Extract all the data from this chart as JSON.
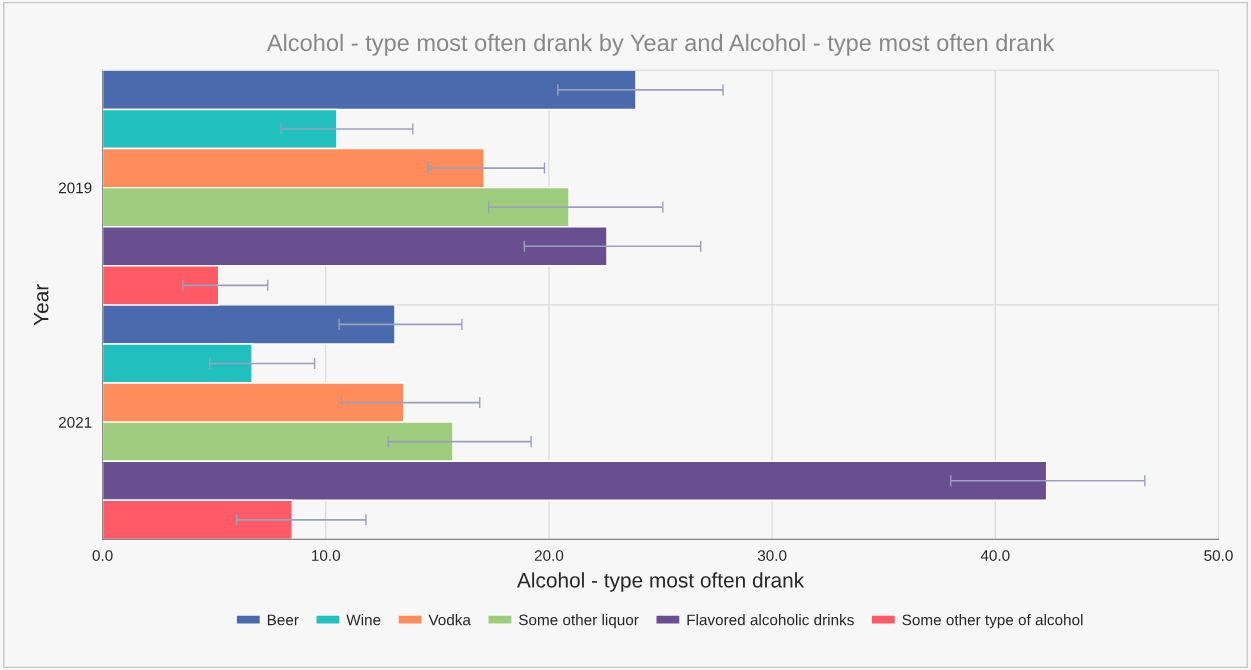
{
  "chart_data": {
    "type": "bar",
    "orientation": "horizontal",
    "title": "Alcohol - type most often drank by Year and Alcohol - type most often drank",
    "xlabel": "Alcohol - type most often drank",
    "ylabel": "Year",
    "categories": [
      "2019",
      "2021"
    ],
    "series": [
      {
        "name": "Beer",
        "color": "#4a6aad",
        "values": [
          23.9,
          13.1
        ],
        "errors": [
          [
            20.4,
            27.8
          ],
          [
            10.6,
            16.1
          ]
        ]
      },
      {
        "name": "Wine",
        "color": "#22bfbf",
        "values": [
          10.5,
          6.7
        ],
        "errors": [
          [
            8.0,
            13.9
          ],
          [
            4.8,
            9.5
          ]
        ]
      },
      {
        "name": "Vodka",
        "color": "#ff8c5a",
        "values": [
          17.1,
          13.5
        ],
        "errors": [
          [
            14.6,
            19.8
          ],
          [
            10.7,
            16.9
          ]
        ]
      },
      {
        "name": "Some other liquor",
        "color": "#9fcd7e",
        "values": [
          20.9,
          15.7
        ],
        "errors": [
          [
            17.3,
            25.1
          ],
          [
            12.8,
            19.2
          ]
        ]
      },
      {
        "name": "Flavored alcoholic drinks",
        "color": "#6a4f90",
        "values": [
          22.6,
          42.3
        ],
        "errors": [
          [
            18.9,
            26.8
          ],
          [
            38.0,
            46.7
          ]
        ]
      },
      {
        "name": "Some other type of alcohol",
        "color": "#ff5a66",
        "values": [
          5.2,
          8.5
        ],
        "errors": [
          [
            3.6,
            7.4
          ],
          [
            6.0,
            11.8
          ]
        ]
      }
    ],
    "xlim": [
      0,
      50
    ],
    "xticks": [
      {
        "value": 0,
        "label": "0.0"
      },
      {
        "value": 10,
        "label": "10.0"
      },
      {
        "value": 20,
        "label": "20.0"
      },
      {
        "value": 30,
        "label": "30.0"
      },
      {
        "value": 40,
        "label": "40.0"
      },
      {
        "value": 50,
        "label": "50.0"
      }
    ],
    "grid": "x",
    "legend": "bottom"
  }
}
